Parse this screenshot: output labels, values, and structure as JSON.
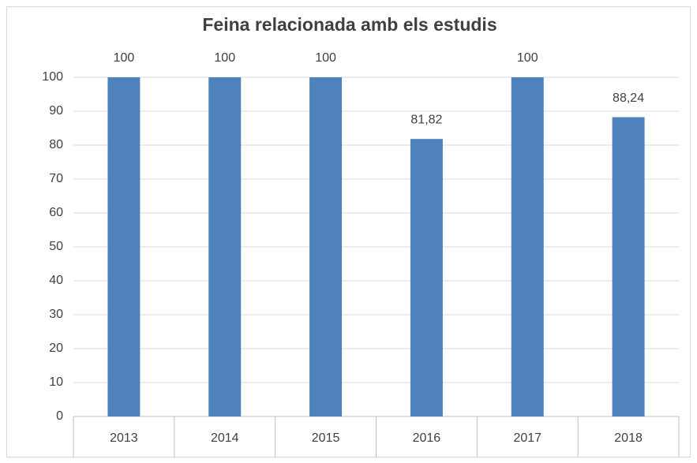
{
  "chart_data": {
    "type": "bar",
    "title": "Feina relacionada amb els estudis",
    "categories": [
      "2013",
      "2014",
      "2015",
      "2016",
      "2017",
      "2018"
    ],
    "values": [
      100,
      100,
      100,
      81.82,
      100,
      88.24
    ],
    "value_labels": [
      "100",
      "100",
      "100",
      "81,82",
      "100",
      "88,24"
    ],
    "color": "#4f81bd",
    "ylim": [
      0,
      100
    ],
    "yticks": [
      0,
      10,
      20,
      30,
      40,
      50,
      60,
      70,
      80,
      90,
      100
    ],
    "grid": true
  }
}
